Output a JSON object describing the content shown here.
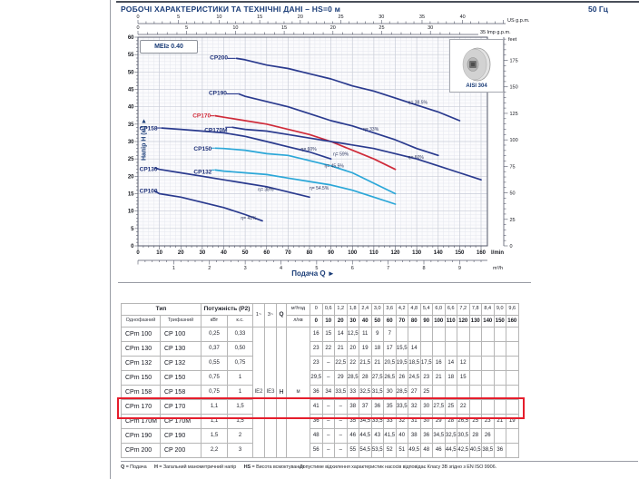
{
  "page": {
    "header_title": "РОБОЧІ ХАРАКТЕРИСТИКИ ТА ТЕХНІЧНІ ДАНІ  –  HS=0 м",
    "frequency": "50 Гц"
  },
  "chart_data": {
    "type": "line",
    "title": "Криві характеристик насосів CP / CPm",
    "mei_label": "MEI≥ 0.40",
    "material_label": "AISI 304",
    "xlabel": "Подача Q",
    "ylabel": "Напір H (м)",
    "xlabel_display": "Подача Q  ►",
    "ylabel_display": "Напір H (м)  ►",
    "xlim": [
      0,
      160
    ],
    "ylim": [
      0,
      60
    ],
    "x_ticks_lmin": [
      0,
      10,
      20,
      30,
      40,
      50,
      60,
      70,
      80,
      90,
      100,
      110,
      120,
      130,
      140,
      150,
      160
    ],
    "x_ticks_m3h": [
      1,
      2,
      3,
      4,
      5,
      6,
      7,
      8,
      9
    ],
    "y_ticks_m": [
      0,
      5,
      10,
      15,
      20,
      25,
      30,
      35,
      40,
      45,
      50,
      55,
      60
    ],
    "y_ticks_feet": [
      0,
      25,
      50,
      75,
      100,
      125,
      150,
      175
    ],
    "us_gpm_ticks": [
      0,
      5,
      10,
      15,
      20,
      25,
      30,
      35,
      40
    ],
    "us_gpm_label": "US g.p.m.",
    "imp_gpm_ticks": [
      0,
      5,
      10,
      15,
      20,
      25,
      30
    ],
    "imp_gpm_label": "35 Imp g.p.m.",
    "lmin_label": "l/min",
    "m3h_label": "m³/h",
    "feet_label": "feet",
    "colors": {
      "dark": "#2a3a8e",
      "light": "#2ba7d8",
      "red": "#cf2b3a",
      "label": "#1c2f78",
      "eta": "#2c3660"
    },
    "series": [
      {
        "name": "CP100",
        "color_key": "dark",
        "label_xy": [
          0.7,
          15.2
        ],
        "eta": "η= 41%",
        "eta_xy": [
          48,
          7.6
        ],
        "points": [
          [
            8,
            15.7
          ],
          [
            10,
            15
          ],
          [
            20,
            14
          ],
          [
            30,
            12.5
          ],
          [
            40,
            11
          ],
          [
            50,
            9
          ],
          [
            58,
            7.2
          ]
        ]
      },
      {
        "name": "CP130",
        "color_key": "dark",
        "label_xy": [
          0.7,
          21.5
        ],
        "eta": "η= 38%",
        "eta_xy": [
          56,
          15.8
        ],
        "points": [
          [
            8,
            22.4
          ],
          [
            10,
            22
          ],
          [
            20,
            21
          ],
          [
            30,
            20
          ],
          [
            40,
            19
          ],
          [
            50,
            18
          ],
          [
            60,
            17
          ],
          [
            70,
            15.5
          ],
          [
            80,
            14
          ]
        ]
      },
      {
        "name": "CP132",
        "color_key": "light",
        "label_xy": [
          26,
          20.7
        ],
        "eta": "η= 54.5%",
        "eta_xy": [
          80,
          16.2
        ],
        "points": [
          [
            36,
            21.8
          ],
          [
            40,
            21.5
          ],
          [
            50,
            21
          ],
          [
            60,
            20.5
          ],
          [
            70,
            19.5
          ],
          [
            80,
            18.5
          ],
          [
            90,
            17.5
          ],
          [
            100,
            16
          ],
          [
            110,
            14
          ],
          [
            120,
            12
          ]
        ]
      },
      {
        "name": "CP150",
        "color_key": "light",
        "label_xy": [
          26,
          27.4
        ],
        "eta": "η= 45.5%",
        "eta_xy": [
          87,
          22.6
        ],
        "points": [
          [
            36,
            28.1
          ],
          [
            40,
            28
          ],
          [
            50,
            27.5
          ],
          [
            60,
            26.5
          ],
          [
            70,
            26
          ],
          [
            80,
            24.5
          ],
          [
            90,
            23
          ],
          [
            100,
            21
          ],
          [
            110,
            18
          ],
          [
            120,
            15
          ]
        ]
      },
      {
        "name": "CP158",
        "color_key": "dark",
        "label_xy": [
          0.7,
          33.3
        ],
        "eta": "η= 60%",
        "eta_xy": [
          76,
          27.4
        ],
        "points": [
          [
            11,
            33.9
          ],
          [
            20,
            33.5
          ],
          [
            30,
            33
          ],
          [
            40,
            32.5
          ],
          [
            50,
            31.5
          ],
          [
            60,
            30
          ],
          [
            70,
            28.5
          ],
          [
            80,
            27
          ],
          [
            90,
            25
          ]
        ]
      },
      {
        "name": "CP170",
        "color_key": "red",
        "label_xy": [
          25.5,
          36.9
        ],
        "eta": "η= 59%",
        "eta_xy": [
          91,
          25.9
        ],
        "points": [
          [
            36,
            37.4
          ],
          [
            40,
            37
          ],
          [
            50,
            36
          ],
          [
            60,
            35
          ],
          [
            70,
            33.5
          ],
          [
            80,
            32
          ],
          [
            90,
            30
          ],
          [
            100,
            27.5
          ],
          [
            110,
            25
          ],
          [
            120,
            22
          ]
        ]
      },
      {
        "name": "CP170M",
        "color_key": "dark",
        "label_xy": [
          31,
          32.8
        ],
        "eta": "η= 60%",
        "eta_xy": [
          126,
          25
        ],
        "points": [
          [
            44,
            34.1
          ],
          [
            50,
            33.5
          ],
          [
            60,
            33
          ],
          [
            70,
            32
          ],
          [
            80,
            31
          ],
          [
            90,
            30
          ],
          [
            100,
            29
          ],
          [
            110,
            28
          ],
          [
            120,
            26.5
          ],
          [
            130,
            25
          ],
          [
            140,
            23
          ],
          [
            150,
            21
          ],
          [
            160,
            19
          ]
        ]
      },
      {
        "name": "CP190",
        "color_key": "dark",
        "label_xy": [
          33,
          43.5
        ],
        "eta": "η= 33%",
        "eta_xy": [
          105,
          33.1
        ],
        "points": [
          [
            47,
            43.7
          ],
          [
            50,
            43
          ],
          [
            60,
            41.5
          ],
          [
            70,
            40
          ],
          [
            80,
            38
          ],
          [
            90,
            36
          ],
          [
            100,
            34.5
          ],
          [
            110,
            32.5
          ],
          [
            120,
            30.5
          ],
          [
            130,
            28
          ],
          [
            140,
            26
          ]
        ]
      },
      {
        "name": "CP200",
        "color_key": "dark",
        "label_xy": [
          33.5,
          53.6
        ],
        "eta": "η= 38.5%",
        "eta_xy": [
          126,
          40.8
        ],
        "points": [
          [
            46,
            53.9
          ],
          [
            50,
            53.5
          ],
          [
            60,
            52
          ],
          [
            70,
            51
          ],
          [
            80,
            49.5
          ],
          [
            90,
            48
          ],
          [
            100,
            46
          ],
          [
            110,
            44.5
          ],
          [
            120,
            42.5
          ],
          [
            130,
            40.5
          ],
          [
            140,
            38.5
          ],
          [
            150,
            36
          ]
        ]
      }
    ]
  },
  "table": {
    "headers": {
      "type_group": "Тип",
      "single_phase": "Однофазний",
      "three_phase": "Трифазний",
      "power_group": "Потужність (P2)",
      "kw": "кВт",
      "hp": "к.с.",
      "phase1": "1~",
      "phase3": "3~",
      "q_label": "Q",
      "flow_unit1": "м³/год",
      "flow_unit2": "л/хв",
      "ie2": "IE2",
      "ie3": "IE3",
      "head_symbol": "H",
      "head_unit": "м"
    },
    "flow_m3h": [
      "0",
      "0,6",
      "1,2",
      "1,8",
      "2,4",
      "3,0",
      "3,6",
      "4,2",
      "4,8",
      "5,4",
      "6,0",
      "6,6",
      "7,2",
      "7,8",
      "8,4",
      "9,0",
      "9,6"
    ],
    "flow_lmin": [
      "0",
      "10",
      "20",
      "30",
      "40",
      "50",
      "60",
      "70",
      "80",
      "90",
      "100",
      "110",
      "120",
      "130",
      "140",
      "150",
      "160"
    ],
    "rows": [
      {
        "single": "CPm 100",
        "three": "CP 100",
        "kw": "0,25",
        "hp": "0,33",
        "highlight": false,
        "heads": [
          "16",
          "15",
          "14",
          "12,5",
          "11",
          "9",
          "7"
        ]
      },
      {
        "single": "CPm 130",
        "three": "CP 130",
        "kw": "0,37",
        "hp": "0,50",
        "highlight": false,
        "heads": [
          "23",
          "22",
          "21",
          "20",
          "19",
          "18",
          "17",
          "15,5",
          "14"
        ]
      },
      {
        "single": "CPm 132",
        "three": "CP 132",
        "kw": "0,55",
        "hp": "0,75",
        "highlight": false,
        "heads": [
          "23",
          "–",
          "22,5",
          "22",
          "21,5",
          "21",
          "20,5",
          "19,5",
          "18,5",
          "17,5",
          "16",
          "14",
          "12"
        ]
      },
      {
        "single": "CPm 150",
        "three": "CP 150",
        "kw": "0,75",
        "hp": "1",
        "highlight": false,
        "heads": [
          "29,5",
          "–",
          "29",
          "28,5",
          "28",
          "27,5",
          "26,5",
          "26",
          "24,5",
          "23",
          "21",
          "18",
          "15"
        ]
      },
      {
        "single": "CPm 158",
        "three": "CP 158",
        "kw": "0,75",
        "hp": "1",
        "highlight": false,
        "heads": [
          "36",
          "34",
          "33,5",
          "33",
          "32,5",
          "31,5",
          "30",
          "28,5",
          "27",
          "25"
        ]
      },
      {
        "single": "CPm 170",
        "three": "CP 170",
        "kw": "1,1",
        "hp": "1,5",
        "highlight": true,
        "heads": [
          "41",
          "–",
          "–",
          "38",
          "37",
          "36",
          "35",
          "33,5",
          "32",
          "30",
          "27,5",
          "25",
          "22"
        ]
      },
      {
        "single": "CPm 170M",
        "three": "CP 170M",
        "kw": "1,1",
        "hp": "1,5",
        "highlight": false,
        "heads": [
          "36",
          "–",
          "–",
          "35",
          "34,5",
          "33,5",
          "33",
          "32",
          "31",
          "30",
          "29",
          "28",
          "26,5",
          "25",
          "23",
          "21",
          "19"
        ]
      },
      {
        "single": "CPm 190",
        "three": "CP 190",
        "kw": "1,5",
        "hp": "2",
        "highlight": false,
        "heads": [
          "48",
          "–",
          "–",
          "46",
          "44,5",
          "43",
          "41,5",
          "40",
          "38",
          "36",
          "34,5",
          "32,5",
          "30,5",
          "28",
          "26"
        ]
      },
      {
        "single": "CPm 200",
        "three": "CP 200",
        "kw": "2,2",
        "hp": "3",
        "highlight": false,
        "heads": [
          "56",
          "–",
          "–",
          "55",
          "54,5",
          "53,5",
          "52",
          "51",
          "49,5",
          "48",
          "46",
          "44,5",
          "42,5",
          "40,5",
          "38,5",
          "36"
        ]
      }
    ]
  },
  "footnote": {
    "q_key": "Q",
    "q_val": "= Подача",
    "h_key": "H",
    "h_val": "= Загальний манометричний напір",
    "hs_key": "HS",
    "hs_val": "= Висота всмоктування",
    "tolerance": "Допустиме відхилення характеристик насосів відповідає Класу 3B згідно з EN ISO 9906."
  }
}
